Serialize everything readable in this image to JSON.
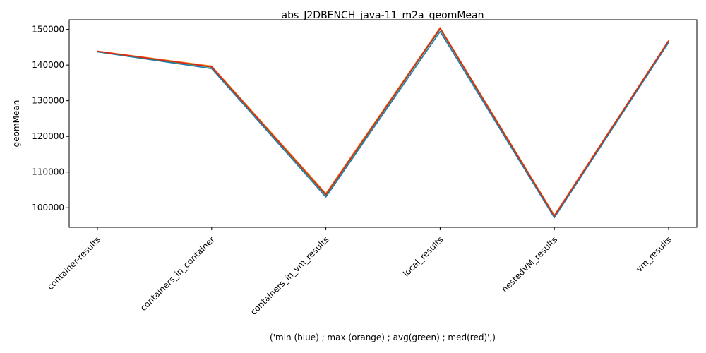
{
  "chart_data": {
    "type": "line",
    "title": "abs_J2DBENCH_java-11_m2a_geomMean",
    "xlabel": "('min (blue) ; max (orange) ; avg(green) ; med(red)',)",
    "ylabel": "geomMean",
    "categories": [
      "container-results",
      "containers_in_container",
      "containers_in_vm_results",
      "local_results",
      "nestedVM_results",
      "vm_results"
    ],
    "y_ticks": [
      100000,
      110000,
      120000,
      130000,
      140000,
      150000
    ],
    "ylim": [
      94500,
      152700
    ],
    "grid": false,
    "series": [
      {
        "name": "min",
        "color": "#1f77b4",
        "values": [
          143700,
          139000,
          103000,
          149400,
          97200,
          146300
        ]
      },
      {
        "name": "max",
        "color": "#ff7f0e",
        "values": [
          143900,
          139700,
          104000,
          150500,
          97900,
          146900
        ]
      },
      {
        "name": "avg",
        "color": "#2ca02c",
        "values": [
          143800,
          139400,
          103500,
          150100,
          97600,
          146700
        ]
      },
      {
        "name": "med",
        "color": "#d62728",
        "values": [
          143850,
          139500,
          103700,
          150300,
          97700,
          146800
        ]
      }
    ]
  }
}
